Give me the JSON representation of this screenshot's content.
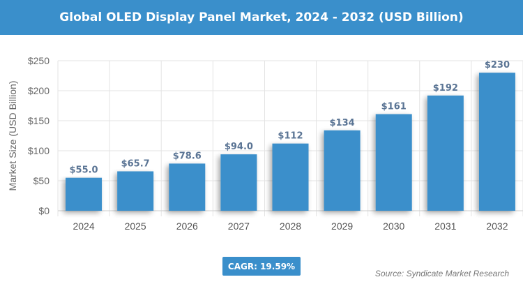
{
  "chart_data": {
    "type": "bar",
    "title": "Global OLED Display Panel Market, 2024 - 2032 (USD Billion)",
    "xlabel": "",
    "ylabel": "Market Size (USD Billion)",
    "categories": [
      "2024",
      "2025",
      "2026",
      "2027",
      "2028",
      "2029",
      "2030",
      "2031",
      "2032"
    ],
    "values": [
      55.0,
      65.7,
      78.6,
      94.0,
      112,
      134,
      161,
      192,
      230
    ],
    "data_labels": [
      "$55.0",
      "$65.7",
      "$78.6",
      "$94.0",
      "$112",
      "$134",
      "$161",
      "$192",
      "$230"
    ],
    "ylim": [
      0,
      250
    ],
    "yticks": [
      0,
      50,
      100,
      150,
      200,
      250
    ],
    "ytick_labels": [
      "$0",
      "$50",
      "$100",
      "$150",
      "$200",
      "$250"
    ],
    "grid": true,
    "bar_color": "#3a8fcb",
    "label_color": "#5a7494"
  },
  "cagr_label": "CAGR: 19.59%",
  "source": "Source: Syndicate Market Research"
}
